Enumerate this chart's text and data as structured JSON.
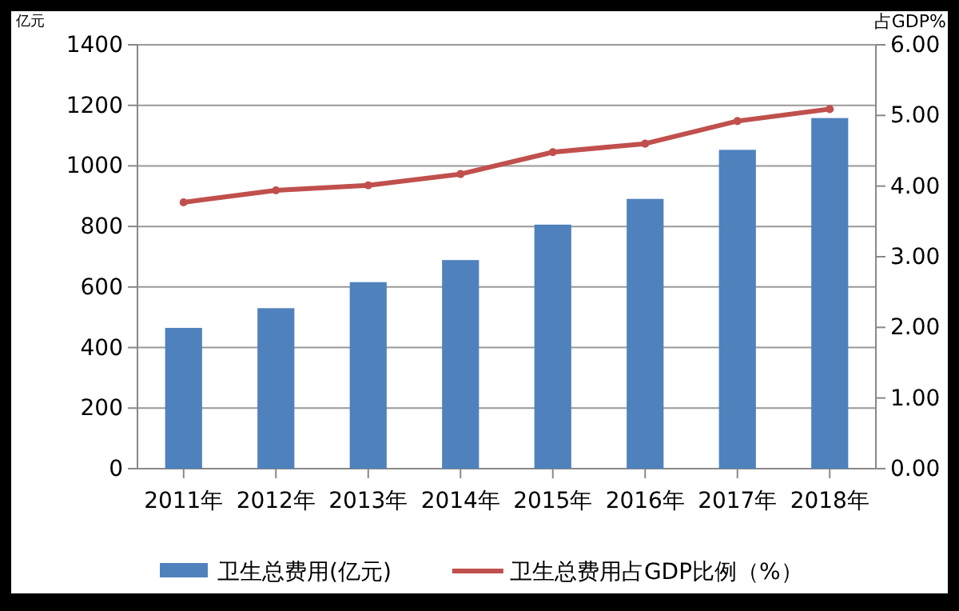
{
  "chart_data": {
    "type": "bar",
    "ylabel": "亿元",
    "y2label": "占GDP%",
    "categories": [
      "2011年",
      "2012年",
      "2013年",
      "2014年",
      "2015年",
      "2016年",
      "2017年",
      "2018年"
    ],
    "series": [
      {
        "name": "卫生总费用(亿元)",
        "color": "#4f81bd",
        "values": [
          465,
          530,
          616,
          689,
          806,
          891,
          1053,
          1158
        ]
      },
      {
        "name": "卫生总费用占GDP比例（%）",
        "type": "line",
        "axis": "y2",
        "color": "#c0504d",
        "values": [
          3.77,
          3.94,
          4.01,
          4.17,
          4.48,
          4.6,
          4.92,
          5.09
        ]
      }
    ],
    "ylim": [
      0,
      1400
    ],
    "yticks": [
      0,
      200,
      400,
      600,
      800,
      1000,
      1200,
      1400
    ],
    "y2lim": [
      0,
      6
    ],
    "y2ticks": [
      {
        "value": 0,
        "label": "0.00"
      },
      {
        "value": 1,
        "label": "1.00"
      },
      {
        "value": 2,
        "label": "2.00"
      },
      {
        "value": 3,
        "label": "3.00"
      },
      {
        "value": 4,
        "label": "4.00"
      },
      {
        "value": 5,
        "label": "5.00"
      },
      {
        "value": 6,
        "label": "6.00"
      }
    ],
    "grid": "y",
    "legend": "bottom",
    "marker": "circle",
    "line_style": "solid"
  }
}
